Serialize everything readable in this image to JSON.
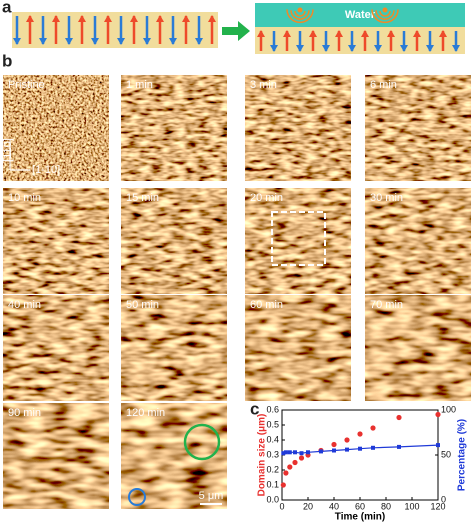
{
  "panel_labels": [
    "a",
    "b",
    "c"
  ],
  "panel_a": {
    "water_label": "Water"
  },
  "panel_b": {
    "axis_labels": [
      "[110]",
      "[1-10]"
    ],
    "images": [
      "Pristine",
      "1 min",
      "3 min",
      "6 min",
      "10 min",
      "15 min",
      "20 min",
      "30 min",
      "40 min",
      "50 min",
      "60 min",
      "70 min",
      "90 min",
      "120 min"
    ],
    "scale_bar": "5 μm"
  },
  "chart_data": {
    "type": "scatter",
    "x_label": "Time (min)",
    "y_label": "Domain size (μm)",
    "y2_label": "Percentage (%)",
    "x": [
      1,
      3,
      6,
      10,
      15,
      20,
      30,
      40,
      50,
      60,
      70,
      90,
      120
    ],
    "series": [
      {
        "name": "Domain size (μm)",
        "color": "#e8312f",
        "values": [
          0.1,
          0.18,
          0.22,
          0.25,
          0.28,
          0.3,
          0.33,
          0.37,
          0.4,
          0.44,
          0.48,
          0.55,
          0.57
        ]
      },
      {
        "name": "Percentage (%)",
        "color": "#1f3ad8",
        "axis": "y2",
        "values": [
          52,
          53,
          53,
          53,
          52,
          53,
          54,
          55,
          56,
          57,
          58,
          59,
          61
        ]
      }
    ],
    "xlim": [
      0,
      120
    ],
    "xticks": [
      0,
      20,
      40,
      60,
      80,
      100,
      120
    ],
    "ylim": [
      0,
      0.6
    ],
    "yticks": [
      {
        "value": 0,
        "label": "0.0"
      },
      0.1,
      0.2,
      0.3,
      0.4,
      0.5,
      0.6
    ],
    "y2lim": [
      0,
      100
    ],
    "y2ticks": [
      0,
      50,
      100
    ]
  }
}
